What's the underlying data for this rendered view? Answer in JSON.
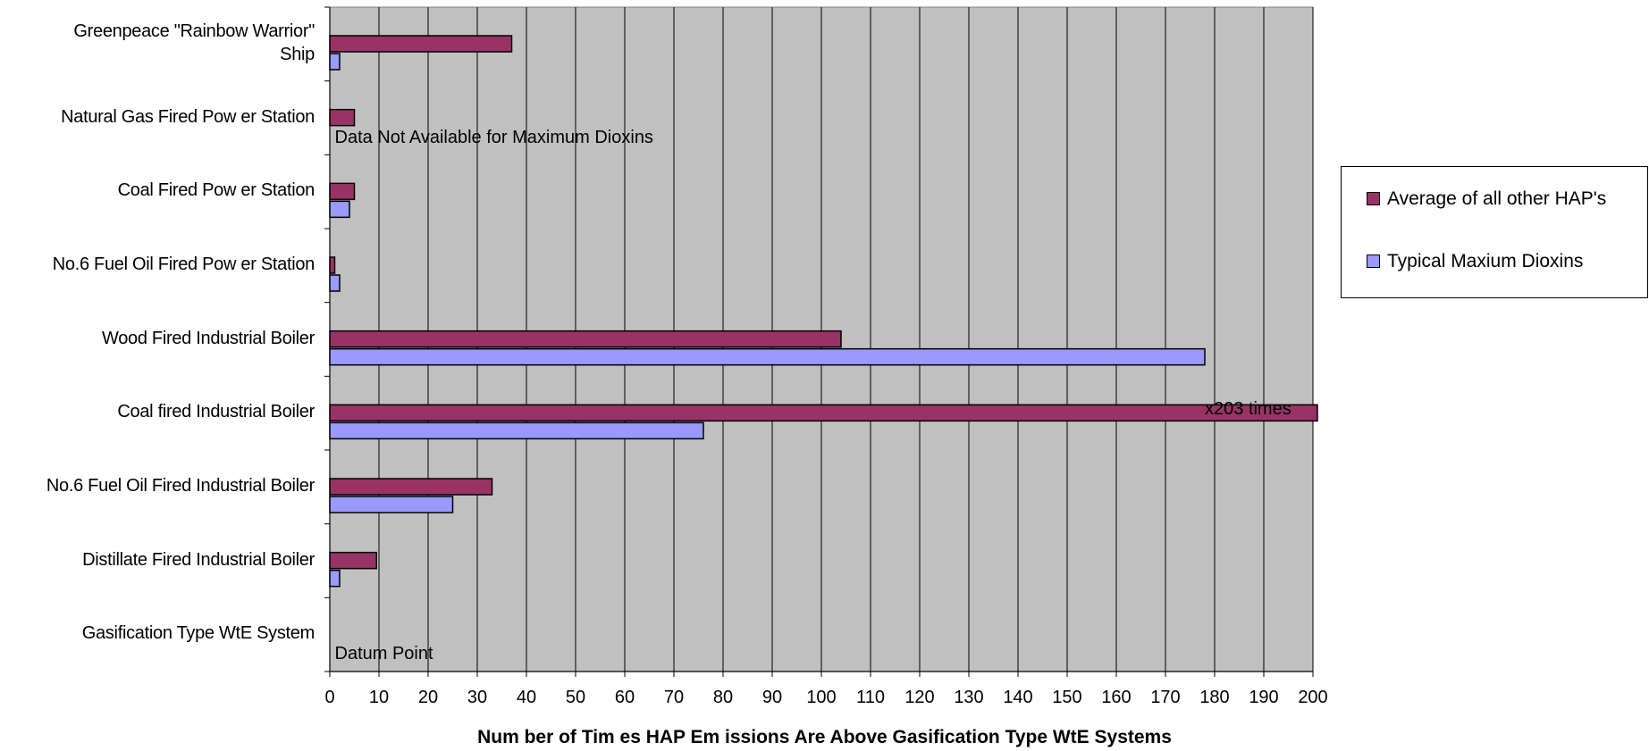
{
  "chart_data": {
    "type": "bar",
    "orientation": "horizontal",
    "categories": [
      "Greenpeace \"Rainbow  Warrior\"\nShip",
      "Natural Gas Fired Pow er Station",
      "Coal Fired Pow er Station",
      "No.6 Fuel Oil Fired Pow er Station",
      "Wood Fired Industrial Boiler",
      "Coal fired Industrial Boiler",
      "No.6 Fuel Oil Fired Industrial Boiler",
      "Distillate Fired Industrial Boiler",
      "Gasification Type WtE System"
    ],
    "series": [
      {
        "name": "Average of all other HAP's",
        "color": "#993366",
        "values": [
          37,
          5,
          5,
          1,
          104,
          203,
          33,
          9.5,
          0
        ]
      },
      {
        "name": "Typical Maxium Dioxins",
        "color": "#9999ff",
        "values": [
          2,
          null,
          4,
          2,
          178,
          76,
          25,
          2,
          0
        ]
      }
    ],
    "xlim": [
      0,
      200
    ],
    "xticks": [
      0,
      10,
      20,
      30,
      40,
      50,
      60,
      70,
      80,
      90,
      100,
      110,
      120,
      130,
      140,
      150,
      160,
      170,
      180,
      190,
      200
    ],
    "xlabel": "Num ber of Tim es HAP Em issions Are Above Gasification Type WtE Systems",
    "ylabel": "",
    "grid": "vertical",
    "plot_background": "#c0c0c0",
    "legend_position": "right",
    "annotations": {
      "no_data": "Data Not Available for Maximum Dioxins",
      "overflow": "x203 times",
      "datum": "Datum Point"
    }
  }
}
